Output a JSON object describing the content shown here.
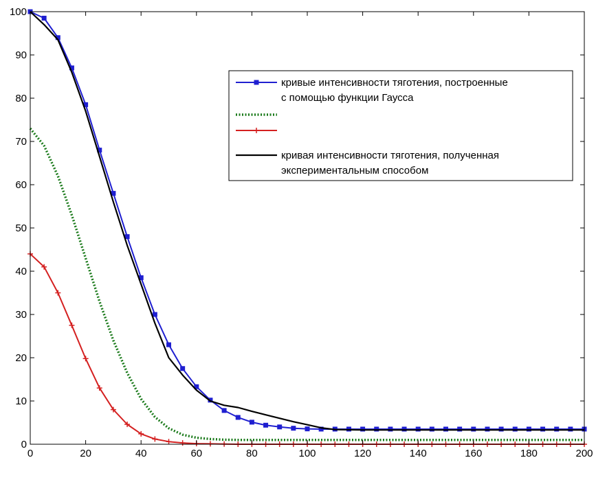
{
  "chart_data": {
    "type": "line",
    "xlim": [
      0,
      200
    ],
    "ylim": [
      0,
      100
    ],
    "x_ticks": [
      0,
      20,
      40,
      60,
      80,
      100,
      120,
      140,
      160,
      180,
      200
    ],
    "y_ticks": [
      0,
      10,
      20,
      30,
      40,
      50,
      60,
      70,
      80,
      90,
      100
    ],
    "grid": false,
    "legend_placement": "top-right",
    "series": [
      {
        "name": "кривые интенсивности тяготения, построенные с помощью функции Гаусса",
        "legend_lines": [
          "кривые интенсивности тяготения, построенные",
          "с помощью функции Гаусса"
        ],
        "color": "#1f1fd0",
        "style": "solid-square-markers",
        "x": [
          0,
          5,
          10,
          15,
          20,
          25,
          30,
          35,
          40,
          45,
          50,
          55,
          60,
          65,
          70,
          75,
          80,
          85,
          90,
          95,
          100,
          105,
          110,
          115,
          120,
          125,
          130,
          135,
          140,
          145,
          150,
          155,
          160,
          165,
          170,
          175,
          180,
          185,
          190,
          195,
          200
        ],
        "y": [
          100,
          98.5,
          94,
          87,
          78.5,
          68,
          58,
          48,
          38.5,
          30,
          23,
          17.5,
          13.3,
          10.2,
          7.8,
          6.2,
          5.1,
          4.4,
          4.0,
          3.7,
          3.55,
          3.5,
          3.5,
          3.5,
          3.5,
          3.5,
          3.5,
          3.5,
          3.5,
          3.5,
          3.5,
          3.5,
          3.5,
          3.5,
          3.5,
          3.5,
          3.5,
          3.5,
          3.5,
          3.5,
          3.5
        ]
      },
      {
        "name": "",
        "legend_lines": [],
        "color": "#1a7a1a",
        "style": "dotted",
        "x": [
          0,
          5,
          10,
          15,
          20,
          25,
          30,
          35,
          40,
          45,
          50,
          55,
          60,
          65,
          70,
          75,
          80,
          85,
          90,
          95,
          100,
          110,
          120,
          140,
          160,
          180,
          200
        ],
        "y": [
          73,
          69,
          62,
          53,
          43,
          33,
          24,
          16.5,
          10.5,
          6.3,
          3.7,
          2.2,
          1.5,
          1.2,
          1.05,
          1.0,
          1.0,
          1.0,
          1.0,
          1.0,
          1.0,
          1.0,
          1.0,
          1.0,
          1.0,
          1.0,
          1.0
        ]
      },
      {
        "name": "",
        "legend_lines": [],
        "color": "#d42020",
        "style": "solid-plus-markers",
        "x": [
          0,
          5,
          10,
          15,
          20,
          25,
          30,
          35,
          40,
          45,
          50,
          55,
          60,
          65,
          70,
          75,
          80,
          85,
          90,
          95,
          100,
          105,
          110,
          115,
          120,
          125,
          130,
          135,
          140,
          145,
          150,
          155,
          160,
          165,
          170,
          175,
          180,
          185,
          190,
          195,
          200
        ],
        "y": [
          44,
          41,
          35,
          27.5,
          19.8,
          13,
          8,
          4.6,
          2.4,
          1.2,
          0.6,
          0.3,
          0.15,
          0.1,
          0.05,
          0,
          0,
          0,
          0,
          0,
          0,
          0,
          0,
          0,
          0,
          0,
          0,
          0,
          0,
          0,
          0,
          0,
          0,
          0,
          0,
          0,
          0,
          0,
          0,
          0,
          0
        ]
      },
      {
        "name": "кривая интенсивности тяготения, полученная экспериментальным способом",
        "legend_lines": [
          "кривая интенсивности тяготения, полученная",
          "экспериментальным способом"
        ],
        "color": "#000000",
        "style": "solid",
        "x": [
          0,
          5,
          10,
          15,
          20,
          25,
          30,
          35,
          40,
          45,
          50,
          55,
          60,
          65,
          70,
          75,
          80,
          85,
          90,
          95,
          100,
          105,
          110,
          120,
          140,
          160,
          180,
          200
        ],
        "y": [
          100,
          97,
          93.5,
          86,
          77,
          66.5,
          56,
          46,
          37,
          28,
          20,
          16,
          12.5,
          10,
          9,
          8.5,
          7.6,
          6.8,
          6,
          5.2,
          4.5,
          3.8,
          3.4,
          3.3,
          3.3,
          3.3,
          3.3,
          3.3
        ]
      }
    ]
  }
}
